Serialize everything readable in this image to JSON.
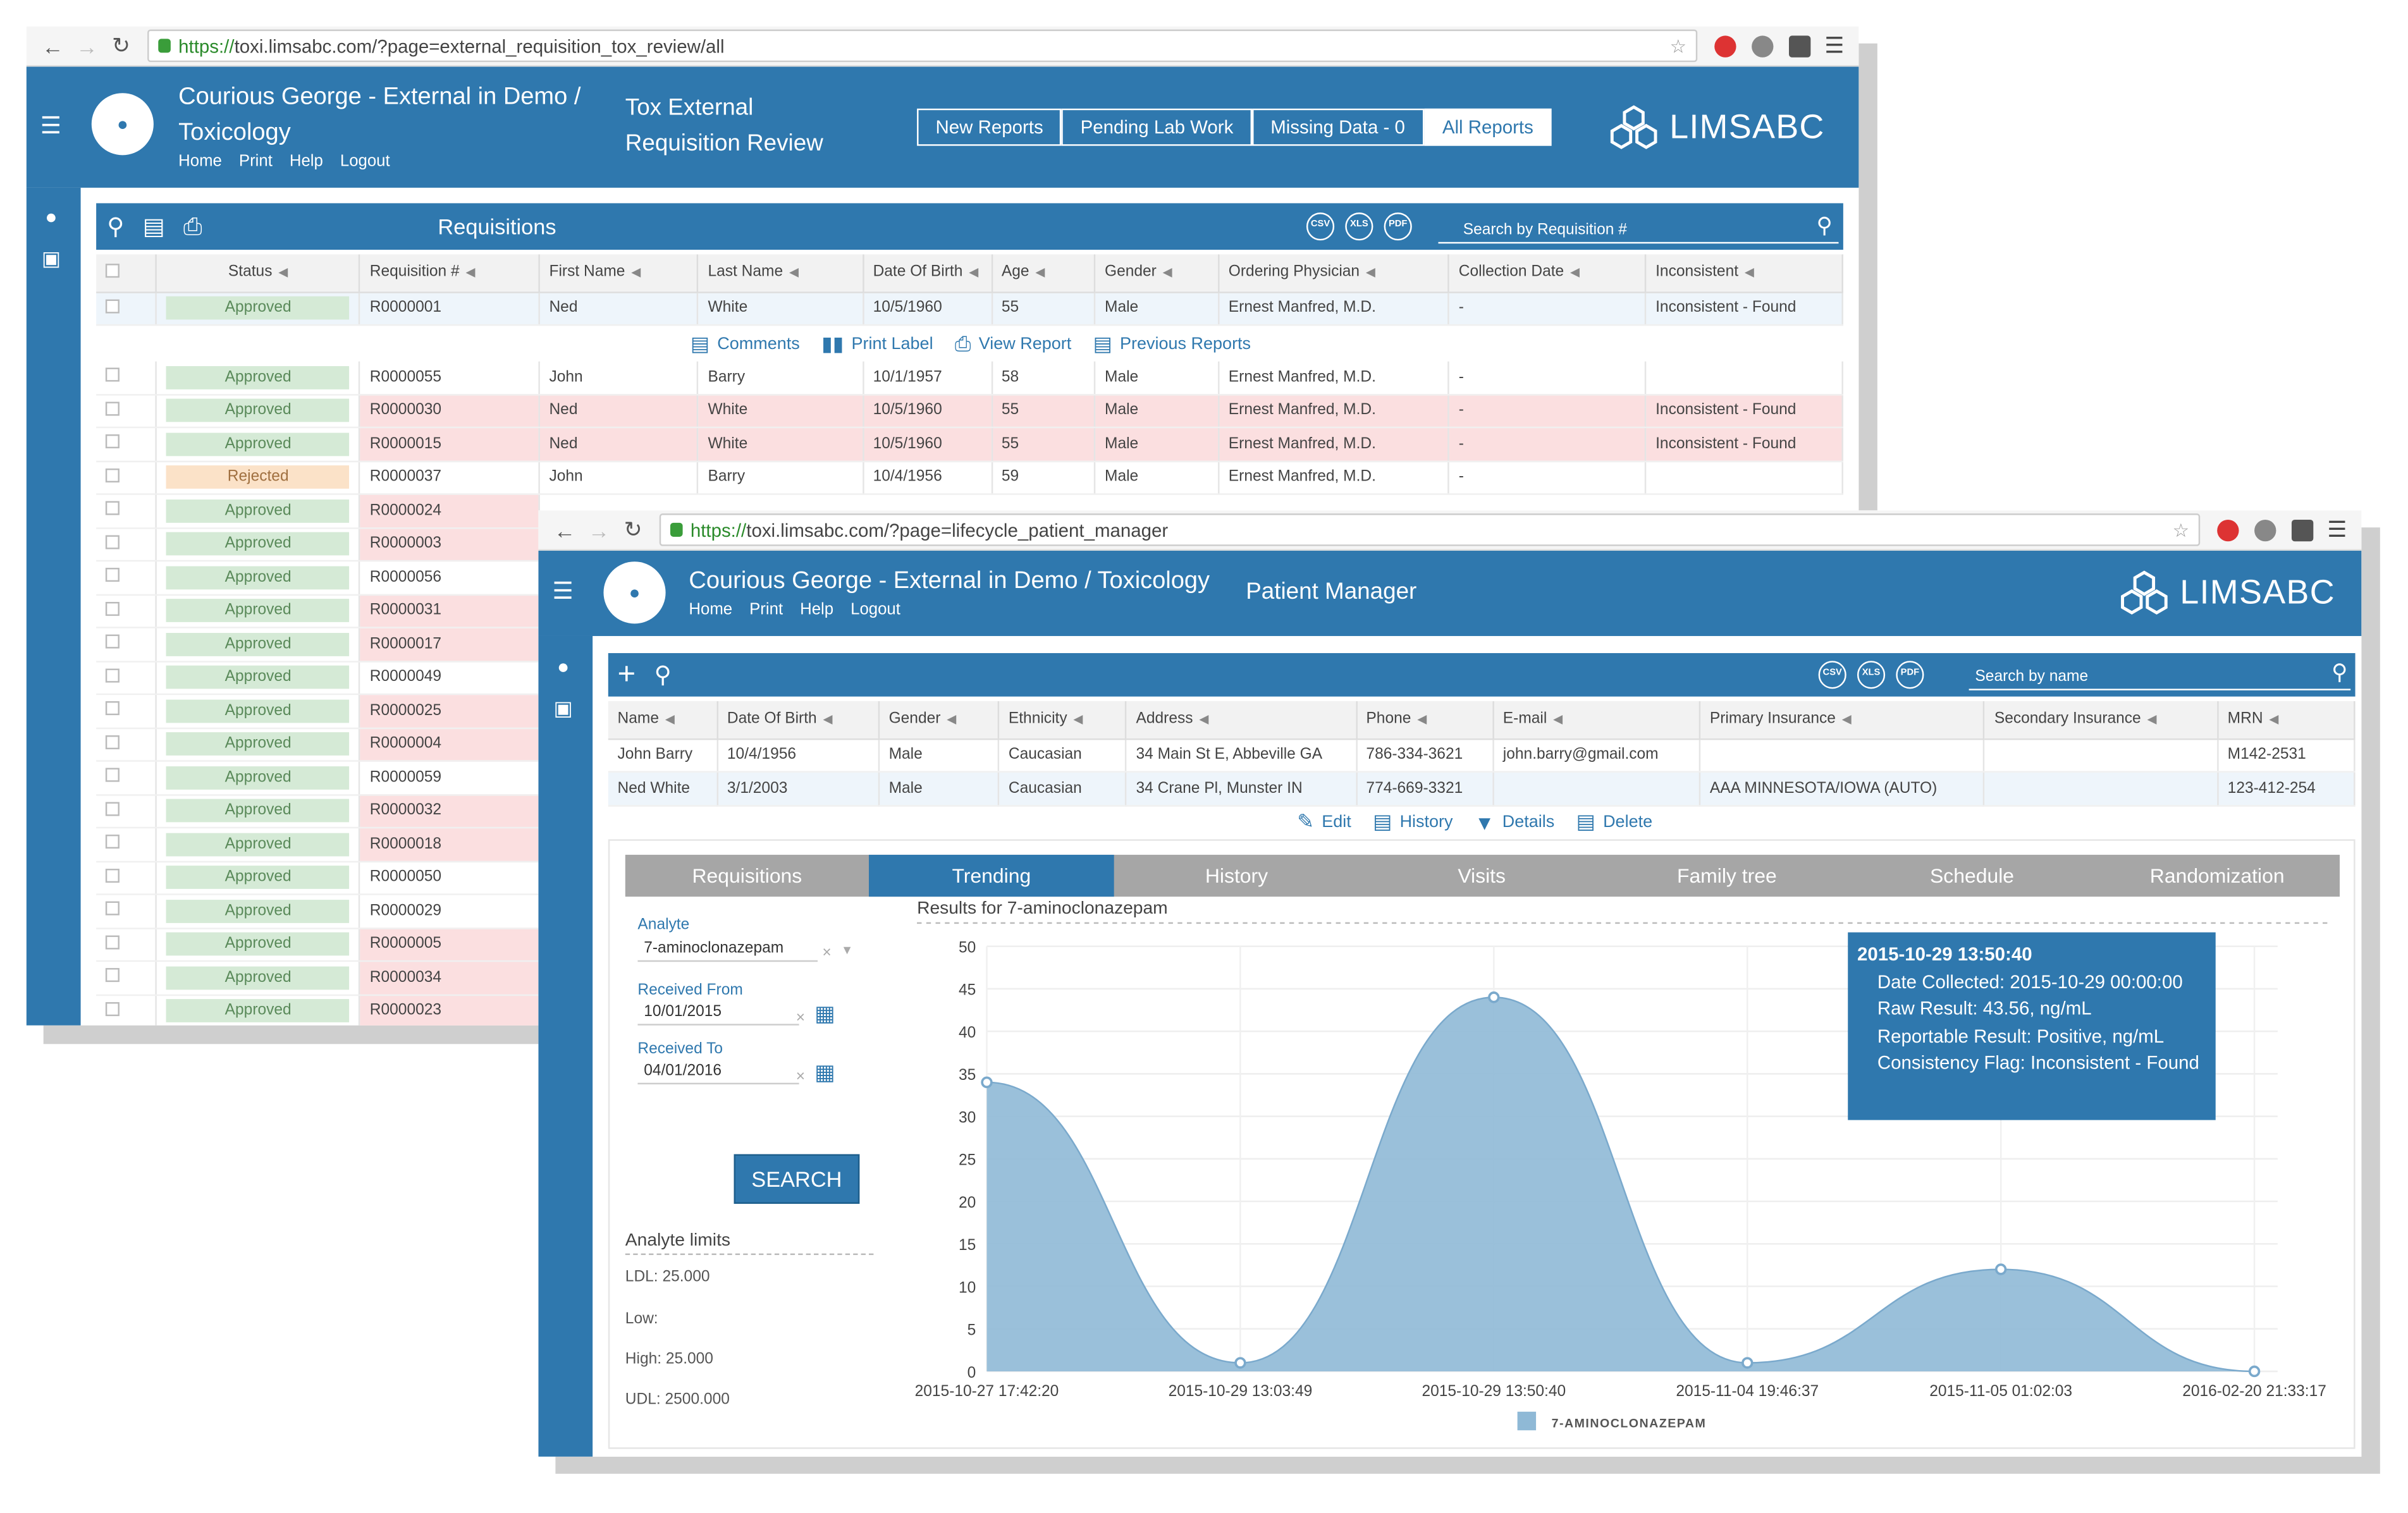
{
  "window1": {
    "url_secure": "https://",
    "url_domain": "toxi.limsabc.com",
    "url_rest": "/?page=external_requisition_tox_review/all",
    "org_line1": "Courious George - External in Demo /",
    "org_line2": "Toxicology",
    "links": [
      "Home",
      "Print",
      "Help",
      "Logout"
    ],
    "page_title_line1": "Tox External",
    "page_title_line2": "Requisition Review",
    "tabs": [
      {
        "label": "New Reports",
        "active": false
      },
      {
        "label": "Pending Lab Work",
        "active": false
      },
      {
        "label": "Missing Data - 0",
        "active": false
      },
      {
        "label": "All Reports",
        "active": true
      }
    ],
    "panel_title": "Requisitions",
    "search_placeholder": "Search by Requisition #",
    "columns": [
      "Status",
      "Requisition #",
      "First Name",
      "Last Name",
      "Date Of Birth",
      "Age",
      "Gender",
      "Ordering Physician",
      "Collection Date",
      "Inconsistent"
    ],
    "rows": [
      {
        "status": "Approved",
        "status_type": "approved",
        "req": "R0000001",
        "first": "Ned",
        "last": "White",
        "dob": "10/5/1960",
        "age": "55",
        "gender": "Male",
        "physician": "Ernest Manfred, M.D.",
        "collection": "-",
        "inconsistent": "Inconsistent - Found",
        "pink": false,
        "selected": true
      },
      {
        "status": "Approved",
        "status_type": "approved",
        "req": "R0000055",
        "first": "John",
        "last": "Barry",
        "dob": "10/1/1957",
        "age": "58",
        "gender": "Male",
        "physician": "Ernest Manfred, M.D.",
        "collection": "-",
        "inconsistent": "",
        "pink": false
      },
      {
        "status": "Approved",
        "status_type": "approved",
        "req": "R0000030",
        "first": "Ned",
        "last": "White",
        "dob": "10/5/1960",
        "age": "55",
        "gender": "Male",
        "physician": "Ernest Manfred, M.D.",
        "collection": "-",
        "inconsistent": "Inconsistent - Found",
        "pink": true
      },
      {
        "status": "Approved",
        "status_type": "approved",
        "req": "R0000015",
        "first": "Ned",
        "last": "White",
        "dob": "10/5/1960",
        "age": "55",
        "gender": "Male",
        "physician": "Ernest Manfred, M.D.",
        "collection": "-",
        "inconsistent": "Inconsistent - Found",
        "pink": true
      },
      {
        "status": "Rejected",
        "status_type": "rejected",
        "req": "R0000037",
        "first": "John",
        "last": "Barry",
        "dob": "10/4/1956",
        "age": "59",
        "gender": "Male",
        "physician": "Ernest Manfred, M.D.",
        "collection": "-",
        "inconsistent": "",
        "pink": false
      },
      {
        "status": "Approved",
        "status_type": "approved",
        "req": "R0000024",
        "pink": true
      },
      {
        "status": "Approved",
        "status_type": "approved",
        "req": "R0000003",
        "pink": true
      },
      {
        "status": "Approved",
        "status_type": "approved",
        "req": "R0000056",
        "pink": false
      },
      {
        "status": "Approved",
        "status_type": "approved",
        "req": "R0000031",
        "pink": true
      },
      {
        "status": "Approved",
        "status_type": "approved",
        "req": "R0000017",
        "pink": true
      },
      {
        "status": "Approved",
        "status_type": "approved",
        "req": "R0000049",
        "pink": false
      },
      {
        "status": "Approved",
        "status_type": "approved",
        "req": "R0000025",
        "pink": true
      },
      {
        "status": "Approved",
        "status_type": "approved",
        "req": "R0000004",
        "pink": true
      },
      {
        "status": "Approved",
        "status_type": "approved",
        "req": "R0000059",
        "pink": false
      },
      {
        "status": "Approved",
        "status_type": "approved",
        "req": "R0000032",
        "pink": true
      },
      {
        "status": "Approved",
        "status_type": "approved",
        "req": "R0000018",
        "pink": true
      },
      {
        "status": "Approved",
        "status_type": "approved",
        "req": "R0000050",
        "pink": false
      },
      {
        "status": "Approved",
        "status_type": "approved",
        "req": "R0000029",
        "pink": false
      },
      {
        "status": "Approved",
        "status_type": "approved",
        "req": "R0000005",
        "pink": true
      },
      {
        "status": "Approved",
        "status_type": "approved",
        "req": "R0000034",
        "pink": true
      },
      {
        "status": "Approved",
        "status_type": "approved",
        "req": "R0000023",
        "pink": true
      }
    ],
    "row_actions": [
      "Comments",
      "Print Label",
      "View Report",
      "Previous Reports"
    ],
    "export_buttons": [
      "CSV",
      "XLS",
      "PDF"
    ]
  },
  "window2": {
    "url_secure": "https://",
    "url_domain": "toxi.limsabc.com",
    "url_rest": "/?page=lifecycle_patient_manager",
    "org": "Courious George - External in Demo / Toxicology",
    "links": [
      "Home",
      "Print",
      "Help",
      "Logout"
    ],
    "page_title": "Patient Manager",
    "search_placeholder": "Search by name",
    "export_buttons": [
      "CSV",
      "XLS",
      "PDF"
    ],
    "columns": [
      "Name",
      "Date Of Birth",
      "Gender",
      "Ethnicity",
      "Address",
      "Phone",
      "E-mail",
      "Primary Insurance",
      "Secondary Insurance",
      "MRN"
    ],
    "rows": [
      {
        "name": "John Barry",
        "dob": "10/4/1956",
        "gender": "Male",
        "ethnicity": "Caucasian",
        "address": "34 Main St E, Abbeville GA",
        "phone": "786-334-3621",
        "email": "john.barry@gmail.com",
        "primary": "",
        "secondary": "",
        "mrn": "M142-2531"
      },
      {
        "name": "Ned White",
        "dob": "3/1/2003",
        "gender": "Male",
        "ethnicity": "Caucasian",
        "address": "34 Crane Pl, Munster IN",
        "phone": "774-669-3321",
        "email": "",
        "primary": "AAA MINNESOTA/IOWA (AUTO)",
        "secondary": "",
        "mrn": "123-412-254"
      }
    ],
    "row_actions": [
      "Edit",
      "History",
      "Details",
      "Delete"
    ],
    "tabs": [
      {
        "label": "Requisitions",
        "active": false
      },
      {
        "label": "Trending",
        "active": true
      },
      {
        "label": "History",
        "active": false
      },
      {
        "label": "Visits",
        "active": false
      },
      {
        "label": "Family tree",
        "active": false
      },
      {
        "label": "Schedule",
        "active": false
      },
      {
        "label": "Randomization",
        "active": false
      }
    ],
    "form": {
      "analyte_label": "Analyte",
      "analyte_value": "7-aminoclonazepam",
      "received_from_label": "Received From",
      "received_from_value": "10/01/2015",
      "received_to_label": "Received To",
      "received_to_value": "04/01/2016",
      "search_button": "SEARCH"
    },
    "limits": {
      "title": "Analyte limits",
      "ldl": "LDL: 25.000",
      "low": "Low:",
      "high": "High: 25.000",
      "udl": "UDL: 2500.000"
    },
    "tooltip": {
      "title": "2015-10-29 13:50:40",
      "lines": [
        "Date Collected: 2015-10-29 00:00:00",
        "Raw Result: 43.56, ng/mL",
        "Reportable Result: Positive, ng/mL",
        "Consistency Flag: Inconsistent  - Found"
      ]
    }
  },
  "brand": "LIMSABC",
  "colors": {
    "primary": "#2f78ae",
    "tab_gray": "#a6a6a6",
    "approved_bg": "#d5ead6",
    "rejected_bg": "#fbe2c8",
    "pink_row": "#fbdfe0",
    "area_fill": "#8fb9d6"
  },
  "chart_data": {
    "type": "area",
    "title": "Results for 7-aminoclonazepam",
    "x": [
      "2015-10-27 17:42:20",
      "2015-10-29 13:03:49",
      "2015-10-29 13:50:40",
      "2015-11-04 19:46:37",
      "2015-11-05 01:02:03",
      "2016-02-20 21:33:17"
    ],
    "series": [
      {
        "name": "7-AMINOCLONAZEPAM",
        "values": [
          34,
          1,
          44,
          1,
          12,
          0
        ]
      }
    ],
    "ylim": [
      0,
      50
    ],
    "yticks": [
      0,
      5,
      10,
      15,
      20,
      25,
      30,
      35,
      40,
      45,
      50
    ],
    "grid": true,
    "legend": "bottom",
    "smooth": true
  }
}
